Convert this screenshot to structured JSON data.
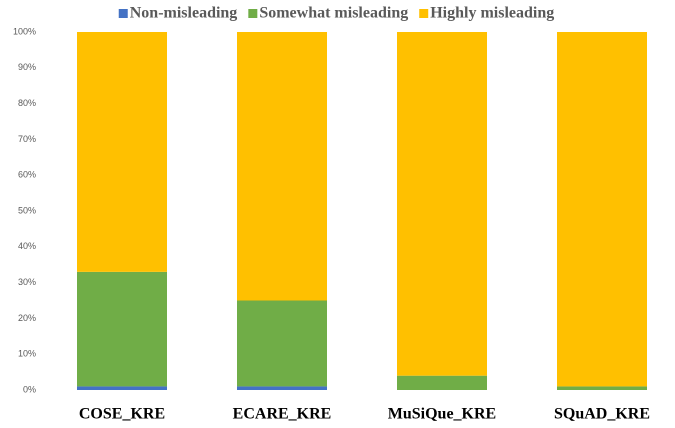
{
  "chart_data": {
    "type": "stacked_bar",
    "categories": [
      "COSE_KRE",
      "ECARE_KRE",
      "MuSiQue_KRE",
      "SQuAD_KRE"
    ],
    "series": [
      {
        "name": "Non-misleading",
        "color": "#4472c4",
        "values": [
          1,
          1,
          0,
          0
        ]
      },
      {
        "name": "Somewhat misleading",
        "color": "#70ad47",
        "values": [
          32,
          24,
          4,
          1
        ]
      },
      {
        "name": "Highly misleading",
        "color": "#ffc000",
        "values": [
          67,
          75,
          96,
          99
        ]
      }
    ],
    "ylim": [
      0,
      100
    ],
    "yticks": [
      {
        "value": 0,
        "label": "0%"
      },
      {
        "value": 10,
        "label": "10%"
      },
      {
        "value": 20,
        "label": "20%"
      },
      {
        "value": 30,
        "label": "30%"
      },
      {
        "value": 40,
        "label": "40%"
      },
      {
        "value": 50,
        "label": "50%"
      },
      {
        "value": 60,
        "label": "60%"
      },
      {
        "value": 70,
        "label": "70%"
      },
      {
        "value": 80,
        "label": "80%"
      },
      {
        "value": 90,
        "label": "90%"
      },
      {
        "value": 100,
        "label": "100%"
      }
    ],
    "legend": "top"
  }
}
